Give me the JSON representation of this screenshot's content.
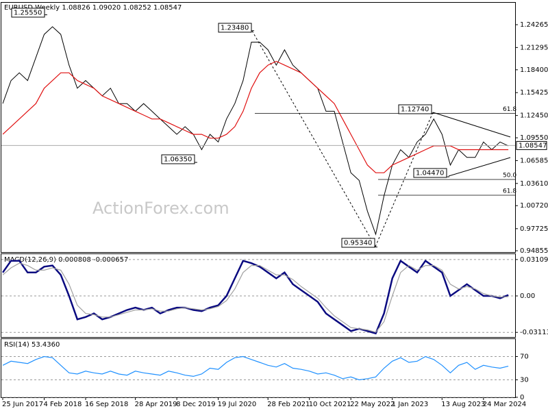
{
  "chart_data": [
    {
      "type": "line",
      "title": "EURUSD,Weekly  1.08826 1.09020 1.08252 1.08547",
      "watermark": "ActionForex.com",
      "categories": [
        "25 Jun 2017",
        null,
        null,
        null,
        null,
        "4 Feb 2018",
        null,
        null,
        null,
        null,
        "16 Sep 2018",
        null,
        null,
        null,
        null,
        null,
        "28 Apr 2019",
        null,
        null,
        null,
        null,
        "8 Dec 2019",
        null,
        null,
        null,
        null,
        "19 Jul 2020",
        null,
        null,
        null,
        null,
        null,
        "28 Feb 2021",
        null,
        null,
        null,
        null,
        "10 Oct 2021",
        null,
        null,
        null,
        null,
        "22 May 2022",
        null,
        null,
        null,
        null,
        "1 Jan 2023",
        null,
        null,
        null,
        null,
        null,
        "13 Aug 2023",
        null,
        null,
        null,
        null,
        "24 Mar 2024",
        null,
        null,
        null
      ],
      "series": [
        {
          "color": "#000000",
          "values": [
            1.14,
            1.17,
            1.18,
            1.17,
            1.2,
            1.23,
            1.24,
            1.23,
            1.19,
            1.16,
            1.17,
            1.16,
            1.15,
            1.16,
            1.14,
            1.14,
            1.13,
            1.14,
            1.13,
            1.12,
            1.11,
            1.1,
            1.11,
            1.1,
            1.08,
            1.1,
            1.09,
            1.12,
            1.14,
            1.17,
            1.22,
            1.22,
            1.21,
            1.19,
            1.21,
            1.19,
            1.18,
            1.17,
            1.16,
            1.13,
            1.13,
            1.09,
            1.05,
            1.04,
            1.0,
            0.97,
            1.02,
            1.06,
            1.08,
            1.07,
            1.09,
            1.1,
            1.12,
            1.1,
            1.06,
            1.08,
            1.07,
            1.07,
            1.09,
            1.08,
            1.09,
            1.085
          ]
        },
        {
          "color": "#e01010",
          "values": [
            1.1,
            1.11,
            1.12,
            1.13,
            1.14,
            1.16,
            1.17,
            1.18,
            1.18,
            1.17,
            1.165,
            1.16,
            1.15,
            1.145,
            1.14,
            1.135,
            1.13,
            1.125,
            1.12,
            1.12,
            1.115,
            1.11,
            1.105,
            1.1,
            1.1,
            1.095,
            1.095,
            1.1,
            1.11,
            1.13,
            1.16,
            1.18,
            1.19,
            1.195,
            1.19,
            1.185,
            1.18,
            1.17,
            1.16,
            1.15,
            1.14,
            1.12,
            1.1,
            1.08,
            1.06,
            1.05,
            1.05,
            1.06,
            1.065,
            1.07,
            1.075,
            1.08,
            1.085,
            1.085,
            1.085,
            1.08,
            1.08,
            1.08,
            1.08,
            1.08,
            1.08,
            1.08
          ]
        }
      ],
      "annotations": [
        {
          "value": 1.2555,
          "label": "1.25550"
        },
        {
          "value": 1.2348,
          "label": "1.23480"
        },
        {
          "value": 1.0635,
          "label": "1.06350"
        },
        {
          "value": 0.9534,
          "label": "0.95340"
        },
        {
          "value": 1.1274,
          "label": "1.12740"
        },
        {
          "value": 1.0447,
          "label": "1.04470"
        }
      ],
      "fib_levels": [
        {
          "value": 1.1273,
          "label": "61.8"
        },
        {
          "value": 1.0413,
          "label": "50.0"
        },
        {
          "value": 1.0208,
          "label": "61.8"
        }
      ],
      "last_price": {
        "value": 1.08547,
        "label": "1.08547"
      },
      "ylim": [
        0.9468,
        1.2712
      ],
      "yticks": [
        1.24265,
        1.21295,
        {
          "value": 1.184,
          "label": "1.18400"
        },
        1.15425,
        {
          "value": 1.1245,
          "label": "1.12450"
        },
        {
          "value": 1.0955,
          "label": "1.09550"
        },
        1.06585,
        {
          "value": 1.0361,
          "label": "1.03610"
        },
        {
          "value": 1.0072,
          "label": "1.00720"
        },
        0.97725,
        0.94855
      ]
    },
    {
      "type": "line",
      "title": "MACD(12,26,9) 0.000808 -0.000657",
      "series": [
        {
          "color": "#0a0a80",
          "values": [
            0.02,
            0.03,
            0.03,
            0.02,
            0.02,
            0.025,
            0.026,
            0.018,
            0.0,
            -0.02,
            -0.018,
            -0.015,
            -0.02,
            -0.018,
            -0.015,
            -0.012,
            -0.01,
            -0.012,
            -0.01,
            -0.015,
            -0.012,
            -0.01,
            -0.01,
            -0.012,
            -0.013,
            -0.01,
            -0.008,
            0.0,
            0.015,
            0.03,
            0.028,
            0.025,
            0.02,
            0.015,
            0.02,
            0.01,
            0.005,
            0.0,
            -0.005,
            -0.015,
            -0.02,
            -0.025,
            -0.03,
            -0.028,
            -0.03,
            -0.032,
            -0.015,
            0.015,
            0.03,
            0.025,
            0.02,
            0.03,
            0.025,
            0.02,
            0.0,
            0.005,
            0.01,
            0.005,
            0.0,
            0.0,
            -0.002,
            0.0008
          ]
        },
        {
          "color": "#a0a0a0",
          "values": [
            0.018,
            0.024,
            0.028,
            0.026,
            0.022,
            0.022,
            0.024,
            0.022,
            0.01,
            -0.008,
            -0.015,
            -0.016,
            -0.018,
            -0.018,
            -0.016,
            -0.014,
            -0.012,
            -0.012,
            -0.011,
            -0.013,
            -0.013,
            -0.011,
            -0.01,
            -0.011,
            -0.012,
            -0.011,
            -0.009,
            -0.004,
            0.006,
            0.02,
            0.026,
            0.026,
            0.022,
            0.018,
            0.018,
            0.014,
            0.008,
            0.003,
            -0.002,
            -0.01,
            -0.017,
            -0.022,
            -0.027,
            -0.028,
            -0.029,
            -0.031,
            -0.022,
            0.0,
            0.02,
            0.026,
            0.022,
            0.026,
            0.026,
            0.022,
            0.01,
            0.006,
            0.008,
            0.006,
            0.002,
            0.0,
            -0.001,
            -0.0007
          ]
        }
      ],
      "ylim": [
        -0.0351,
        0.0357
      ],
      "yticks": [
        0.031092,
        {
          "value": 0,
          "label": "0.00"
        },
        -0.031134
      ]
    },
    {
      "type": "line",
      "title": "RSI(14) 53.4360",
      "series": [
        {
          "color": "#1e90ff",
          "values": [
            55,
            62,
            60,
            58,
            65,
            70,
            68,
            55,
            42,
            40,
            45,
            42,
            40,
            45,
            40,
            38,
            45,
            42,
            40,
            38,
            45,
            42,
            38,
            36,
            40,
            50,
            48,
            60,
            68,
            70,
            65,
            60,
            55,
            52,
            58,
            50,
            48,
            45,
            40,
            42,
            38,
            32,
            35,
            30,
            32,
            35,
            50,
            62,
            68,
            60,
            62,
            70,
            65,
            55,
            42,
            55,
            60,
            48,
            55,
            52,
            50,
            53.4
          ]
        }
      ],
      "ylim": [
        0,
        100
      ],
      "yticks": [
        70,
        30,
        0
      ]
    }
  ]
}
